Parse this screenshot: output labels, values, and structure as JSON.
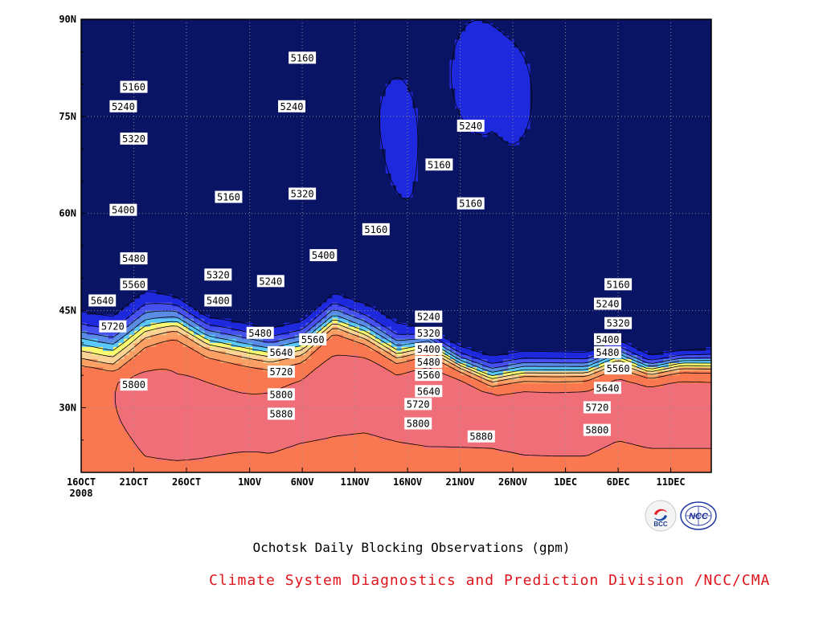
{
  "chart_data": {
    "type": "heatmap",
    "title": "Ochotsk Daily Blocking Observations (gpm)",
    "x_ticks": [
      "16OCT\n2008",
      "21OCT",
      "26OCT",
      "1NOV",
      "6NOV",
      "11NOV",
      "16NOV",
      "21NOV",
      "26NOV",
      "1DEC",
      "6DEC",
      "11DEC"
    ],
    "y_ticks": [
      "30N",
      "45N",
      "60N",
      "75N",
      "90N"
    ],
    "xlim": [
      "2008-10-16",
      "2008-12-14"
    ],
    "ylim": [
      20,
      90
    ],
    "grid": true,
    "levels": [
      5160,
      5240,
      5320,
      5400,
      5480,
      5560,
      5640,
      5720,
      5800,
      5880
    ],
    "level_colors": [
      "#0a1464",
      "#1e28dc",
      "#4650f0",
      "#5a8ce6",
      "#5ac8fa",
      "#fafa6e",
      "#fad296",
      "#faa064",
      "#fa7850",
      "#f06e78",
      "#e63246"
    ],
    "contour_labels": [
      {
        "text": "5160",
        "x": "2008-10-21",
        "y": 79.5
      },
      {
        "text": "5240",
        "x": "2008-10-20",
        "y": 76.5
      },
      {
        "text": "5320",
        "x": "2008-10-21",
        "y": 71.5
      },
      {
        "text": "5400",
        "x": "2008-10-20",
        "y": 60.5
      },
      {
        "text": "5480",
        "x": "2008-10-21",
        "y": 53
      },
      {
        "text": "5560",
        "x": "2008-10-21",
        "y": 49
      },
      {
        "text": "5640",
        "x": "2008-10-18",
        "y": 46.5
      },
      {
        "text": "5720",
        "x": "2008-10-19",
        "y": 42.5
      },
      {
        "text": "5800",
        "x": "2008-10-21",
        "y": 33.5
      },
      {
        "text": "5160",
        "x": "2008-10-30",
        "y": 62.5
      },
      {
        "text": "5320",
        "x": "2008-10-29",
        "y": 50.5
      },
      {
        "text": "5400",
        "x": "2008-10-29",
        "y": 46.5
      },
      {
        "text": "5480",
        "x": "2008-11-02",
        "y": 41.5
      },
      {
        "text": "5240",
        "x": "2008-11-03",
        "y": 49.5
      },
      {
        "text": "5160",
        "x": "2008-11-06",
        "y": 84
      },
      {
        "text": "5240",
        "x": "2008-11-05",
        "y": 76.5
      },
      {
        "text": "5320",
        "x": "2008-11-06",
        "y": 63
      },
      {
        "text": "5400",
        "x": "2008-11-08",
        "y": 53.5
      },
      {
        "text": "5560",
        "x": "2008-11-07",
        "y": 40.5
      },
      {
        "text": "5640",
        "x": "2008-11-04",
        "y": 38.5
      },
      {
        "text": "5720",
        "x": "2008-11-04",
        "y": 35.5
      },
      {
        "text": "5800",
        "x": "2008-11-04",
        "y": 32
      },
      {
        "text": "5880",
        "x": "2008-11-04",
        "y": 29
      },
      {
        "text": "5160",
        "x": "2008-11-13",
        "y": 57.5
      },
      {
        "text": "5160",
        "x": "2008-11-19",
        "y": 67.5
      },
      {
        "text": "5240",
        "x": "2008-11-22",
        "y": 73.5
      },
      {
        "text": "5160",
        "x": "2008-11-22",
        "y": 61.5
      },
      {
        "text": "5240",
        "x": "2008-11-18",
        "y": 44
      },
      {
        "text": "5320",
        "x": "2008-11-18",
        "y": 41.5
      },
      {
        "text": "5400",
        "x": "2008-11-18",
        "y": 39
      },
      {
        "text": "5480",
        "x": "2008-11-18",
        "y": 37
      },
      {
        "text": "5560",
        "x": "2008-11-18",
        "y": 35
      },
      {
        "text": "5640",
        "x": "2008-11-18",
        "y": 32.5
      },
      {
        "text": "5720",
        "x": "2008-11-17",
        "y": 30.5
      },
      {
        "text": "5800",
        "x": "2008-11-17",
        "y": 27.5
      },
      {
        "text": "5880",
        "x": "2008-11-23",
        "y": 25.5
      },
      {
        "text": "5160",
        "x": "2008-12-06",
        "y": 49
      },
      {
        "text": "5240",
        "x": "2008-12-05",
        "y": 46
      },
      {
        "text": "5320",
        "x": "2008-12-06",
        "y": 43
      },
      {
        "text": "5400",
        "x": "2008-12-05",
        "y": 40.5
      },
      {
        "text": "5480",
        "x": "2008-12-05",
        "y": 38.5
      },
      {
        "text": "5560",
        "x": "2008-12-06",
        "y": 36
      },
      {
        "text": "5640",
        "x": "2008-12-05",
        "y": 33
      },
      {
        "text": "5720",
        "x": "2008-12-04",
        "y": 30
      },
      {
        "text": "5800",
        "x": "2008-12-04",
        "y": 26.5
      }
    ]
  },
  "footer": {
    "credit": "Climate System Diagnostics and Prediction Division /NCC/CMA",
    "logo_left_text": "BCC",
    "logo_right_text": "NCC"
  }
}
